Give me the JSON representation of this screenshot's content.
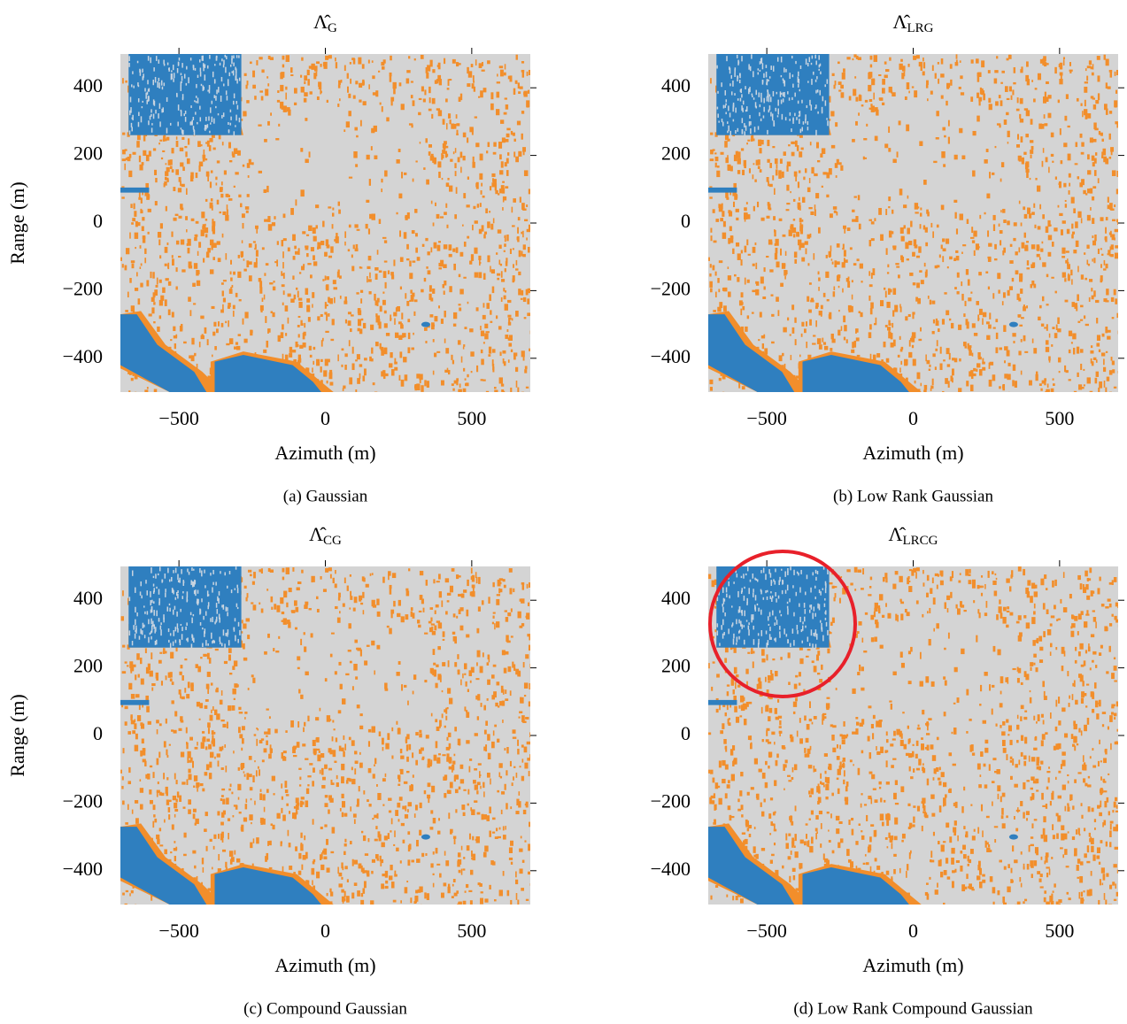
{
  "chart_data": [
    {
      "type": "image",
      "title": "Λ̂",
      "title_subscript": "G",
      "xlabel": "Azimuth (m)",
      "ylabel": "Range (m)",
      "caption": "(a) Gaussian",
      "xlim": [
        -700,
        700
      ],
      "ylim": [
        -500,
        500
      ],
      "xticks": [
        {
          "value": -500,
          "label": "−500"
        },
        0,
        500
      ],
      "yticks": [
        {
          "value": -400,
          "label": "−400"
        },
        {
          "value": -200,
          "label": "−200"
        },
        0,
        200,
        400
      ]
    },
    {
      "type": "image",
      "title": "Λ̂",
      "title_subscript": "LRG",
      "xlabel": "Azimuth (m)",
      "caption": "(b) Low Rank Gaussian",
      "xlim": [
        -700,
        700
      ],
      "ylim": [
        -500,
        500
      ],
      "xticks": [
        {
          "value": -500,
          "label": "−500"
        },
        0,
        500
      ],
      "yticks": [
        {
          "value": -400,
          "label": "−400"
        },
        {
          "value": -200,
          "label": "−200"
        },
        0,
        200,
        400
      ]
    },
    {
      "type": "image",
      "title": "Λ̂",
      "title_subscript": "CG",
      "xlabel": "Azimuth (m)",
      "ylabel": "Range (m)",
      "caption": "(c) Compound Gaussian",
      "xlim": [
        -700,
        700
      ],
      "ylim": [
        -500,
        500
      ],
      "xticks": [
        {
          "value": -500,
          "label": "−500"
        },
        0,
        500
      ],
      "yticks": [
        {
          "value": -400,
          "label": "−400"
        },
        {
          "value": -200,
          "label": "−200"
        },
        0,
        200,
        400
      ]
    },
    {
      "type": "image",
      "title": "Λ̂",
      "title_subscript": "LRCG",
      "xlabel": "Azimuth (m)",
      "caption": "(d) Low Rank Compound Gaussian",
      "xlim": [
        -700,
        700
      ],
      "ylim": [
        -500,
        500
      ],
      "xticks": [
        {
          "value": -500,
          "label": "−500"
        },
        0,
        500
      ],
      "yticks": [
        {
          "value": -400,
          "label": "−400"
        },
        {
          "value": -200,
          "label": "−200"
        },
        0,
        200,
        400
      ]
    }
  ]
}
